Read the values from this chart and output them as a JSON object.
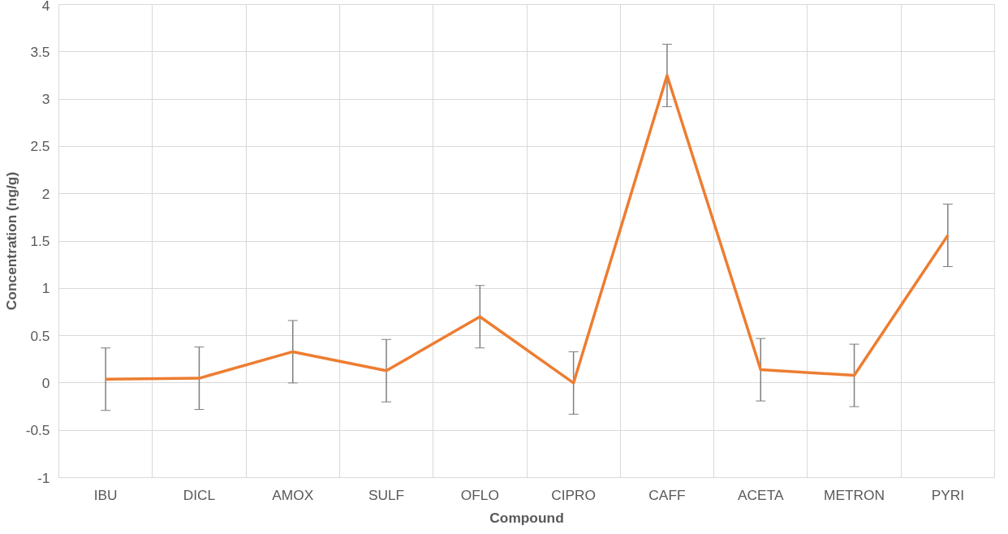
{
  "chart_data": {
    "type": "line",
    "xlabel": "Compound",
    "ylabel": "Concentration (ng/g)",
    "categories": [
      "IBU",
      "DICL",
      "AMOX",
      "SULF",
      "OFLO",
      "CIPRO",
      "CAFF",
      "ACETA",
      "METRON",
      "PYRI"
    ],
    "series": [
      {
        "color": "#ed7d31",
        "values": [
          0.04,
          0.05,
          0.33,
          0.13,
          0.7,
          0.0,
          3.25,
          0.14,
          0.08,
          1.56
        ],
        "errors": [
          0.33,
          0.33,
          0.33,
          0.33,
          0.33,
          0.33,
          0.33,
          0.33,
          0.33,
          0.33
        ]
      }
    ],
    "ylim": [
      -1,
      4
    ],
    "yticks": [
      -1,
      -0.5,
      0,
      0.5,
      1,
      1.5,
      2,
      2.5,
      3,
      3.5,
      4
    ],
    "grid": true,
    "marker": "none",
    "line_style": "solid"
  }
}
